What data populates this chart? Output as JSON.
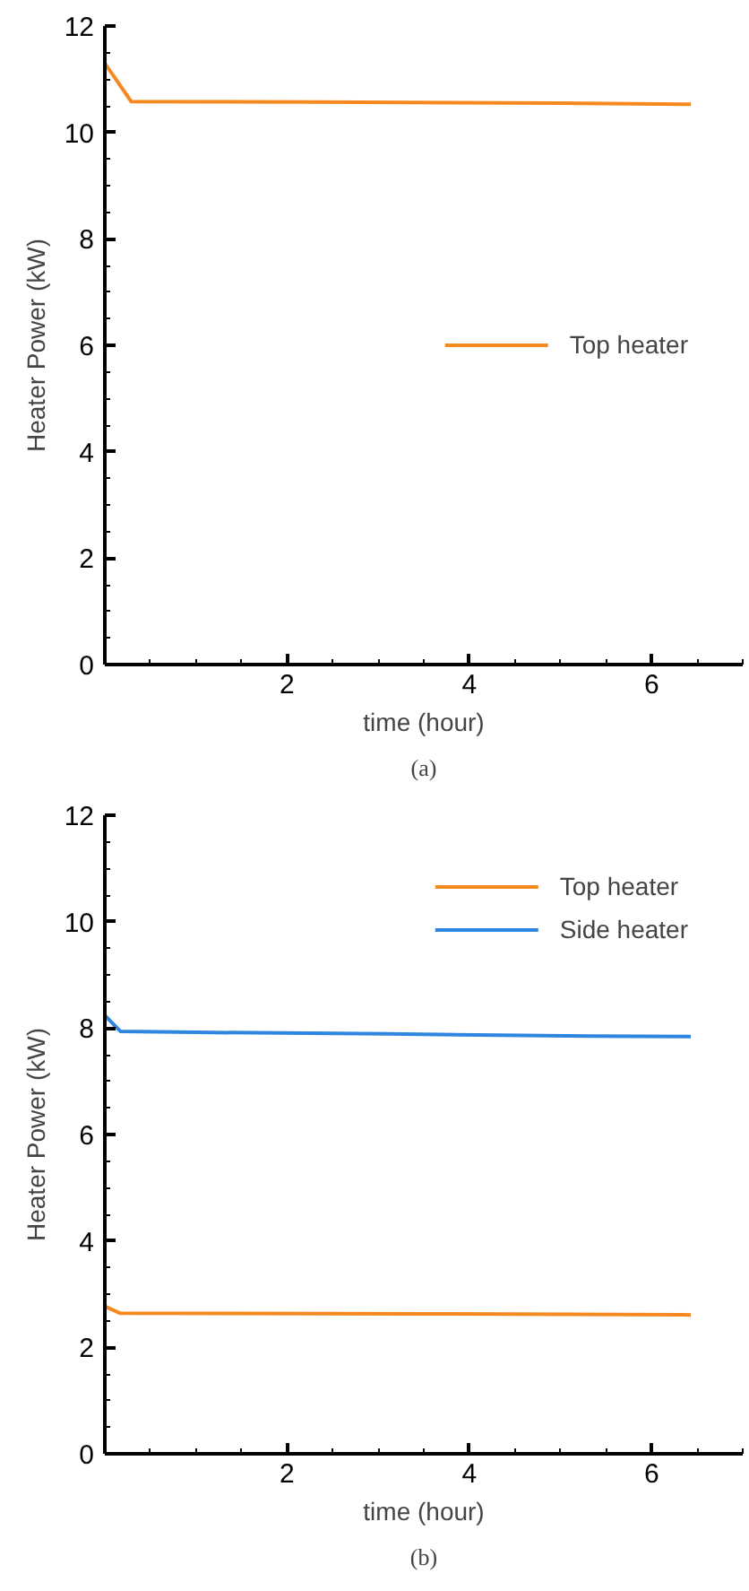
{
  "chart_data": [
    {
      "type": "line",
      "xlabel": "time (hour)",
      "ylabel": "Heater Power (kW)",
      "annotations": [
        "(a)"
      ],
      "xlim": [
        0,
        7
      ],
      "xticks": [
        {
          "value": 0,
          "label": null
        },
        2,
        4,
        6
      ],
      "ylim": [
        0,
        12
      ],
      "yticks": [
        0,
        2,
        4,
        6,
        8,
        10,
        12
      ],
      "grid": false,
      "legend": "right",
      "marker": "none",
      "line_style": "solid",
      "series": [
        {
          "name": "Top heater",
          "color": "#f5891f",
          "x": [
            0,
            0.29,
            2.3,
            5.0,
            6.43
          ],
          "values": [
            11.3,
            10.58,
            10.57,
            10.55,
            10.53
          ]
        }
      ]
    },
    {
      "type": "line",
      "xlabel": "time (hour)",
      "ylabel": "Heater Power (kW)",
      "annotations": [
        "(b)"
      ],
      "xlim": [
        0,
        7
      ],
      "xticks": [
        {
          "value": 0,
          "label": null
        },
        2,
        4,
        6
      ],
      "ylim": [
        0,
        12
      ],
      "yticks": [
        0,
        2,
        4,
        6,
        8,
        10,
        12
      ],
      "grid": false,
      "legend": "top right",
      "marker": "none",
      "line_style": "solid",
      "series": [
        {
          "name": "Top heater",
          "color": "#f5891f",
          "x": [
            0,
            0.17,
            3.5,
            6.43
          ],
          "values": [
            2.77,
            2.64,
            2.63,
            2.61
          ]
        },
        {
          "name": "Side heater",
          "color": "#2f86e0",
          "x": [
            0,
            0.17,
            1.0,
            3.1,
            5.3,
            6.43
          ],
          "values": [
            8.24,
            7.94,
            7.92,
            7.89,
            7.85,
            7.84
          ]
        }
      ]
    }
  ]
}
